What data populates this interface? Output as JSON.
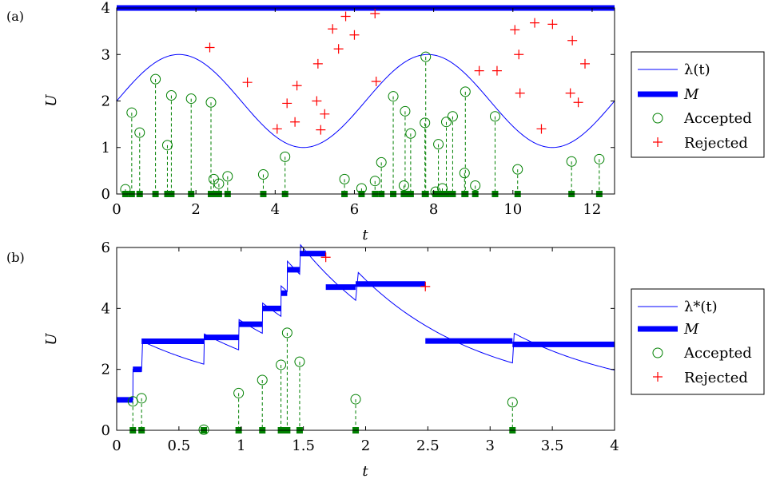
{
  "chart_data": [
    {
      "panel_label": "(a)",
      "type": "line",
      "xlabel": "t",
      "ylabel": "U",
      "xlim": [
        0,
        12.566
      ],
      "ylim": [
        0,
        4
      ],
      "xticks": [
        0,
        2,
        4,
        6,
        8,
        10,
        12
      ],
      "yticks": [
        0,
        1,
        2,
        3,
        4
      ],
      "legend_position": "right-outside",
      "legend": [
        "λ(t)",
        "M",
        "Accepted",
        "Rejected"
      ],
      "colors": {
        "intensity": "#0000ff",
        "bound": "#0000ff",
        "accepted": "#008000",
        "rejected": "#ff0000"
      },
      "intensity": {
        "name": "λ(t)",
        "formula": "2 + sin(t)",
        "x_range": [
          0,
          12.566
        ]
      },
      "bound": {
        "name": "M",
        "segments": [
          [
            0,
            12.566,
            4
          ]
        ]
      },
      "accepted": [
        [
          0.22,
          0.1
        ],
        [
          0.38,
          1.75
        ],
        [
          0.58,
          1.32
        ],
        [
          0.98,
          2.47
        ],
        [
          1.28,
          1.05
        ],
        [
          1.38,
          2.12
        ],
        [
          1.88,
          2.05
        ],
        [
          2.38,
          1.97
        ],
        [
          2.45,
          0.32
        ],
        [
          2.58,
          0.22
        ],
        [
          2.8,
          0.38
        ],
        [
          3.7,
          0.42
        ],
        [
          4.25,
          0.8
        ],
        [
          5.75,
          0.32
        ],
        [
          6.18,
          0.12
        ],
        [
          6.52,
          0.28
        ],
        [
          6.68,
          0.68
        ],
        [
          6.98,
          2.1
        ],
        [
          7.25,
          0.18
        ],
        [
          7.28,
          1.78
        ],
        [
          7.42,
          1.3
        ],
        [
          7.78,
          1.53
        ],
        [
          7.8,
          2.95
        ],
        [
          8.05,
          0.05
        ],
        [
          8.12,
          1.07
        ],
        [
          8.22,
          0.12
        ],
        [
          8.32,
          1.55
        ],
        [
          8.48,
          1.67
        ],
        [
          8.78,
          0.45
        ],
        [
          8.8,
          2.2
        ],
        [
          9.05,
          0.18
        ],
        [
          9.55,
          1.67
        ],
        [
          10.12,
          0.53
        ],
        [
          11.48,
          0.7
        ],
        [
          12.18,
          0.75
        ]
      ],
      "rejected": [
        [
          2.35,
          3.15
        ],
        [
          3.3,
          2.4
        ],
        [
          4.05,
          1.4
        ],
        [
          4.3,
          1.95
        ],
        [
          4.5,
          1.55
        ],
        [
          4.55,
          2.33
        ],
        [
          5.05,
          2.0
        ],
        [
          5.08,
          2.8
        ],
        [
          5.15,
          1.38
        ],
        [
          5.25,
          1.72
        ],
        [
          5.45,
          3.55
        ],
        [
          5.6,
          3.12
        ],
        [
          5.78,
          3.82
        ],
        [
          6.0,
          3.42
        ],
        [
          6.52,
          3.88
        ],
        [
          6.55,
          2.42
        ],
        [
          9.15,
          2.65
        ],
        [
          9.6,
          2.65
        ],
        [
          10.05,
          3.53
        ],
        [
          10.15,
          3.0
        ],
        [
          10.18,
          2.17
        ],
        [
          10.55,
          3.68
        ],
        [
          10.72,
          1.4
        ],
        [
          11.0,
          3.65
        ],
        [
          11.45,
          2.17
        ],
        [
          11.5,
          3.3
        ],
        [
          11.65,
          1.97
        ],
        [
          11.82,
          2.8
        ]
      ]
    },
    {
      "panel_label": "(b)",
      "type": "line",
      "xlabel": "t",
      "ylabel": "U",
      "xlim": [
        0,
        4
      ],
      "ylim": [
        0,
        6
      ],
      "xticks": [
        0,
        0.5,
        1,
        1.5,
        2,
        2.5,
        3,
        3.5,
        4
      ],
      "yticks": [
        0,
        2,
        4,
        6
      ],
      "legend_position": "right-outside",
      "legend": [
        "λ*(t)",
        "M",
        "Accepted",
        "Rejected"
      ],
      "colors": {
        "intensity": "#0000ff",
        "bound": "#0000ff",
        "accepted": "#008000",
        "rejected": "#ff0000"
      },
      "intensity": {
        "name": "λ*(t)",
        "base": 1.0,
        "jump": 1.0,
        "decay": 1.0,
        "events": [
          0.13,
          0.2,
          0.7,
          0.98,
          1.17,
          1.32,
          1.37,
          1.47,
          1.92,
          3.18
        ]
      },
      "bound": {
        "name": "M",
        "segments": [
          [
            0,
            0.13,
            1.0
          ],
          [
            0.13,
            0.2,
            2.0
          ],
          [
            0.2,
            0.7,
            2.92
          ],
          [
            0.7,
            0.98,
            3.05
          ],
          [
            0.98,
            1.17,
            3.48
          ],
          [
            1.17,
            1.32,
            4.0
          ],
          [
            1.32,
            1.37,
            4.5
          ],
          [
            1.37,
            1.47,
            5.27
          ],
          [
            1.47,
            1.68,
            5.8
          ],
          [
            1.68,
            1.92,
            4.7
          ],
          [
            1.92,
            2.48,
            4.8
          ],
          [
            2.48,
            3.18,
            2.93
          ],
          [
            3.18,
            4.0,
            2.82
          ]
        ]
      },
      "accepted": [
        [
          0.13,
          0.95
        ],
        [
          0.2,
          1.05
        ],
        [
          0.7,
          0.02
        ],
        [
          0.98,
          1.22
        ],
        [
          1.17,
          1.65
        ],
        [
          1.32,
          2.15
        ],
        [
          1.37,
          3.2
        ],
        [
          1.47,
          2.25
        ],
        [
          1.92,
          1.02
        ],
        [
          3.18,
          0.92
        ]
      ],
      "rejected": [
        [
          1.68,
          5.68
        ],
        [
          2.48,
          4.72
        ]
      ]
    }
  ]
}
